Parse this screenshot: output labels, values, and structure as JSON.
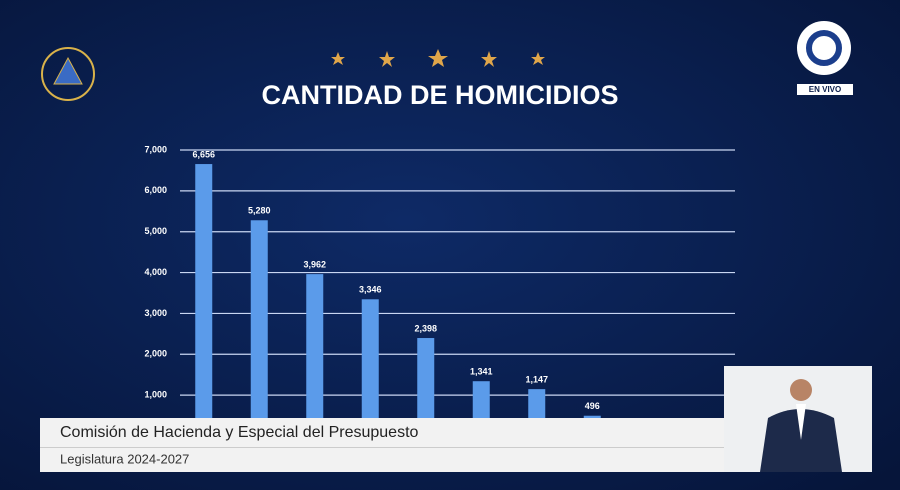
{
  "chart_data": {
    "type": "bar",
    "title": "CANTIDAD DE HOMICIDIOS",
    "categories": [
      null,
      null,
      null,
      null,
      null,
      null,
      null,
      null
    ],
    "values": [
      6656,
      5280,
      3962,
      3346,
      2398,
      1341,
      1147,
      496
    ],
    "value_labels": [
      "6,656",
      "5,280",
      "3,962",
      "3,346",
      "2,398",
      "1,341",
      "1,147",
      "496"
    ],
    "color": "#5b9bea",
    "ylim": [
      0,
      7000
    ],
    "yticks": [
      {
        "value": 1000,
        "label": "1,000"
      },
      {
        "value": 2000,
        "label": "2,000"
      },
      {
        "value": 3000,
        "label": "3,000"
      },
      {
        "value": 4000,
        "label": "4,000"
      },
      {
        "value": 5000,
        "label": "5,000"
      },
      {
        "value": 6000,
        "label": "6,000"
      },
      {
        "value": 7000,
        "label": "7,000"
      }
    ],
    "grid": true
  },
  "broadcast": {
    "live_label": "EN VIVO",
    "lower_third": {
      "title": "Comisión de Hacienda y Especial del Presupuesto",
      "subtitle": "Legislatura 2024-2027"
    }
  }
}
